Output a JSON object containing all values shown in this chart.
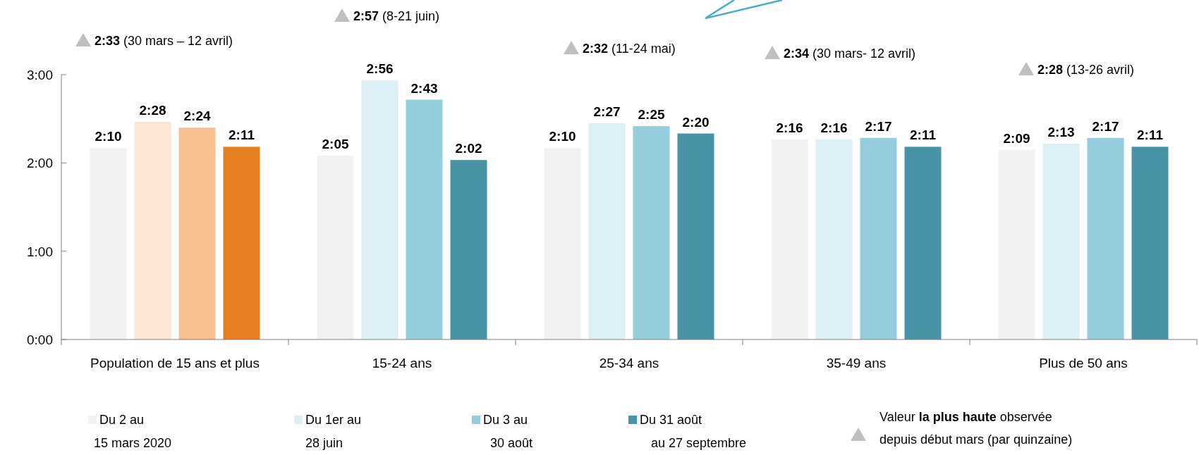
{
  "chart_data": {
    "type": "bar",
    "categories": [
      "Population de 15 ans et plus",
      "15-24 ans",
      "25-34 ans",
      "35-49 ans",
      "Plus de 50 ans"
    ],
    "series": [
      {
        "name": "Du 2 au 15 mars 2020",
        "color": "#f2f2f2",
        "colors": [
          "#f2f2f2",
          "#f2f2f2",
          "#f2f2f2",
          "#f2f2f2",
          "#f2f2f2"
        ],
        "values": [
          130,
          125,
          130,
          136,
          129
        ],
        "value_labels": [
          "2:10",
          "2:05",
          "2:10",
          "2:16",
          "2:09"
        ]
      },
      {
        "name": "Du 1er au 28 juin",
        "color": "#ddeef4",
        "colors": [
          "#fbe5d6",
          "#ddeef4",
          "#ddeef4",
          "#ddeef4",
          "#ddeef4"
        ],
        "values": [
          148,
          176,
          147,
          136,
          133
        ],
        "value_labels": [
          "2:28",
          "2:56",
          "2:27",
          "2:16",
          "2:13"
        ]
      },
      {
        "name": "Du 3 au 30 août",
        "color": "#96cddc",
        "colors": [
          "#f8c090",
          "#96cddc",
          "#96cddc",
          "#96cddc",
          "#96cddc"
        ],
        "values": [
          144,
          163,
          145,
          137,
          137
        ],
        "value_labels": [
          "2:24",
          "2:43",
          "2:25",
          "2:17",
          "2:17"
        ]
      },
      {
        "name": "Du 31 août au 27 septembre",
        "color": "#4893a6",
        "colors": [
          "#e67e22",
          "#4893a6",
          "#4893a6",
          "#4893a6",
          "#4893a6"
        ],
        "values": [
          131,
          122,
          140,
          131,
          131
        ],
        "value_labels": [
          "2:11",
          "2:02",
          "2:20",
          "2:11",
          "2:11"
        ]
      }
    ],
    "ylim": [
      0,
      180
    ],
    "yticks": [
      {
        "value": 0,
        "label": "0:00"
      },
      {
        "value": 60,
        "label": "1:00"
      },
      {
        "value": 120,
        "label": "2:00"
      },
      {
        "value": 180,
        "label": "3:00"
      }
    ],
    "grid": false,
    "legend": "bottom",
    "annotations": [
      "2:33 (30 mars – 12 avril)",
      "2:57 (8-21 juin)",
      "2:32 (11-24 mai)",
      "2:34 (30 mars- 12 avril)",
      "2:28 (13-26 avril)",
      "Valeur la plus haute observée depuis début mars (par quinzaine)"
    ]
  }
}
